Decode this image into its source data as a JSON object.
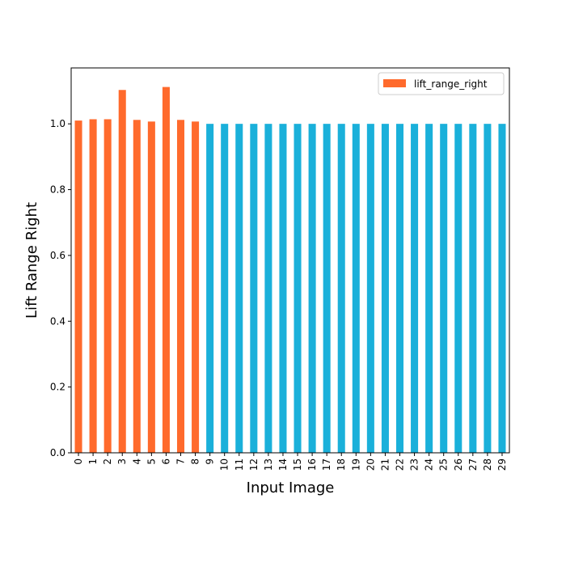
{
  "chart_data": {
    "type": "bar",
    "title": "",
    "xlabel": "Input Image",
    "ylabel": "Lift Range Right",
    "categories": [
      "0",
      "1",
      "2",
      "3",
      "4",
      "5",
      "6",
      "7",
      "8",
      "9",
      "10",
      "11",
      "12",
      "13",
      "14",
      "15",
      "16",
      "17",
      "18",
      "19",
      "20",
      "21",
      "22",
      "23",
      "24",
      "25",
      "26",
      "27",
      "28",
      "29"
    ],
    "series": [
      {
        "name": "lift_range_right",
        "values": [
          1.01,
          1.014,
          1.014,
          1.103,
          1.012,
          1.007,
          1.112,
          1.012,
          1.007,
          1.0,
          1.0,
          1.0,
          1.0,
          1.0,
          1.0,
          1.0,
          1.0,
          1.0,
          1.0,
          1.0,
          1.0,
          1.0,
          1.0,
          1.0,
          1.0,
          1.0,
          1.0,
          1.0,
          1.0,
          1.0
        ]
      }
    ],
    "bar_colors": [
      "#ff6a2c",
      "#ff6a2c",
      "#ff6a2c",
      "#ff6a2c",
      "#ff6a2c",
      "#ff6a2c",
      "#ff6a2c",
      "#ff6a2c",
      "#ff6a2c",
      "#1ab0da",
      "#1ab0da",
      "#1ab0da",
      "#1ab0da",
      "#1ab0da",
      "#1ab0da",
      "#1ab0da",
      "#1ab0da",
      "#1ab0da",
      "#1ab0da",
      "#1ab0da",
      "#1ab0da",
      "#1ab0da",
      "#1ab0da",
      "#1ab0da",
      "#1ab0da",
      "#1ab0da",
      "#1ab0da",
      "#1ab0da",
      "#1ab0da",
      "#1ab0da"
    ],
    "legend_color": "#ff6a2c",
    "ylim": [
      0,
      1.17
    ],
    "yticks": [
      0.0,
      0.2,
      0.4,
      0.6,
      0.8,
      1.0
    ],
    "ytick_labels": [
      "0.0",
      "0.2",
      "0.4",
      "0.6",
      "0.8",
      "1.0"
    ],
    "legend_position": "top-right",
    "grid": false
  }
}
